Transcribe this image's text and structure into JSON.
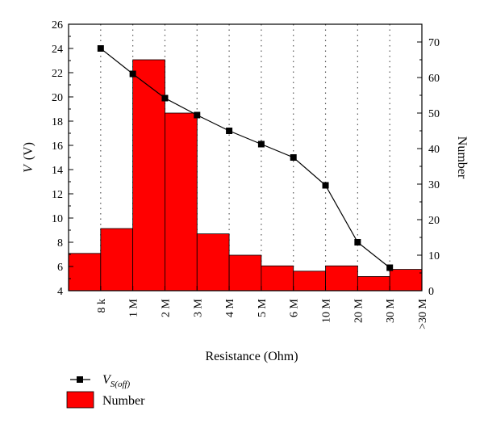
{
  "chart_data": {
    "type": "bar+line",
    "title": "",
    "xlabel": "Resistance (Ohm)",
    "ylabel_left_symbol": "V",
    "ylabel_left_unit": "(V)",
    "ylabel_right": "Number",
    "x_boundaries": [
      "8 k",
      "1 M",
      "2 M",
      "3 M",
      "4 M",
      "5 M",
      "6 M",
      "10 M",
      "20 M",
      "30 M",
      ">30 M"
    ],
    "bars": {
      "name": "Number",
      "color": "#ff0000",
      "axis": "right",
      "values": [
        10.5,
        17.5,
        65,
        50,
        16,
        10,
        7,
        5.5,
        7,
        4,
        6
      ]
    },
    "line": {
      "name_main": "V",
      "name_sub": "S(off)",
      "color": "#000000",
      "axis": "left",
      "values": [
        24,
        21.9,
        19.9,
        18.5,
        17.2,
        16.1,
        15.0,
        12.7,
        8.0,
        5.9
      ]
    },
    "ylim_left": [
      4,
      26
    ],
    "yticks_left": [
      "4",
      "6",
      "8",
      "10",
      "12",
      "14",
      "16",
      "18",
      "20",
      "22",
      "24",
      "26"
    ],
    "ylim_right": [
      0,
      75
    ],
    "yticks_right": [
      "0",
      "10",
      "20",
      "30",
      "40",
      "50",
      "60",
      "70"
    ],
    "grid": "dotted vertical lines at category boundaries",
    "legend_position": "bottom-left"
  }
}
